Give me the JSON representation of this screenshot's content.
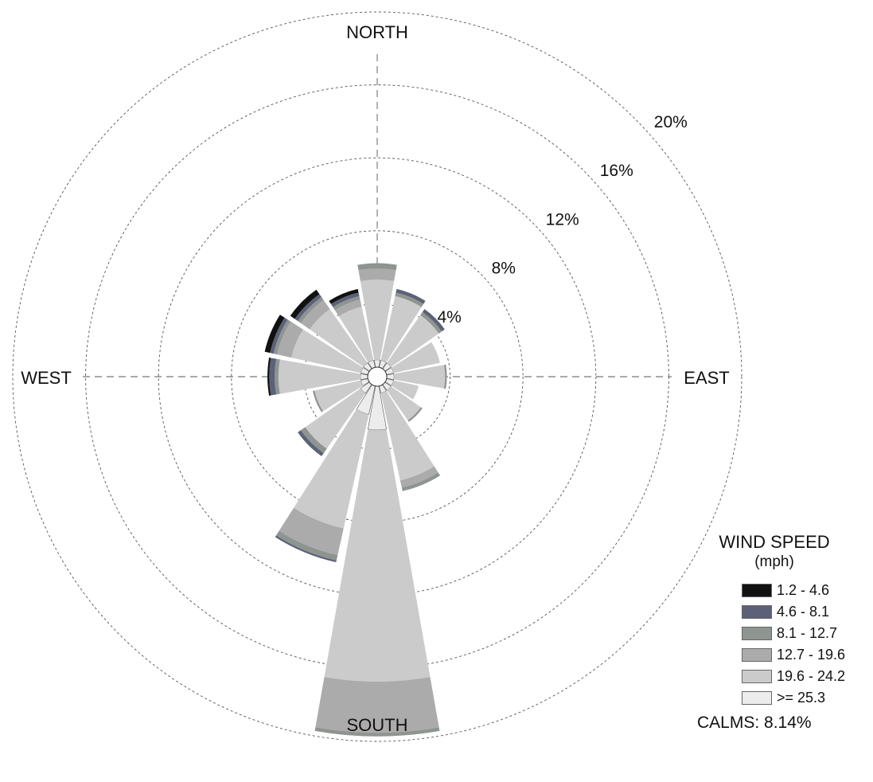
{
  "chart_data": {
    "type": "wind-rose",
    "legend_title": "WIND SPEED",
    "legend_unit": "(mph)",
    "calms_label": "CALMS: 8.14%",
    "direction_labels": {
      "north": "NORTH",
      "east": "EAST",
      "south": "SOUTH",
      "west": "WEST"
    },
    "ring_values": [
      4,
      8,
      12,
      16,
      20
    ],
    "ring_labels": [
      "4%",
      "8%",
      "12%",
      "16%",
      "20%"
    ],
    "value_unit": "%",
    "bins": [
      {
        "name": "1.2 - 4.6",
        "color": "#111111"
      },
      {
        "name": "4.6 - 8.1",
        "color": "#5c6178"
      },
      {
        "name": "8.1 - 12.7",
        "color": "#8e9590"
      },
      {
        "name": "12.7 - 19.6",
        "color": "#ababab"
      },
      {
        "name": "19.6 - 24.2",
        "color": "#cbcbcb"
      },
      {
        "name": ">= 25.3",
        "color": "#ececec"
      }
    ],
    "directions": [
      {
        "dir": "N",
        "angle": 0,
        "values": [
          0.0,
          0.0,
          0.3,
          0.6,
          4.4,
          0.4
        ]
      },
      {
        "dir": "NNE",
        "angle": 22.5,
        "values": [
          0.0,
          0.2,
          0.2,
          0.0,
          3.6,
          0.4
        ]
      },
      {
        "dir": "NE",
        "angle": 45,
        "values": [
          0.0,
          0.2,
          0.2,
          0.0,
          3.2,
          0.4
        ]
      },
      {
        "dir": "ENE",
        "angle": 67.5,
        "values": [
          0.0,
          0.0,
          0.0,
          0.0,
          2.6,
          0.4
        ]
      },
      {
        "dir": "E",
        "angle": 90,
        "values": [
          0.0,
          0.0,
          0.1,
          0.0,
          2.8,
          0.4
        ]
      },
      {
        "dir": "ESE",
        "angle": 112.5,
        "values": [
          0.0,
          0.0,
          0.0,
          0.0,
          1.4,
          0.4
        ]
      },
      {
        "dir": "SE",
        "angle": 135,
        "values": [
          0.0,
          0.0,
          0.1,
          0.0,
          2.0,
          0.4
        ]
      },
      {
        "dir": "SSE",
        "angle": 157.5,
        "values": [
          0.0,
          0.0,
          0.2,
          0.4,
          4.9,
          0.4
        ]
      },
      {
        "dir": "S",
        "angle": 180,
        "values": [
          0.0,
          0.0,
          0.2,
          2.8,
          13.8,
          2.4
        ]
      },
      {
        "dir": "SSW",
        "angle": 202.5,
        "values": [
          0.0,
          0.1,
          0.3,
          1.5,
          6.4,
          1.6
        ]
      },
      {
        "dir": "SW",
        "angle": 225,
        "values": [
          0.0,
          0.2,
          0.3,
          0.0,
          3.7,
          0.6
        ]
      },
      {
        "dir": "WSW",
        "angle": 247.5,
        "values": [
          0.0,
          0.0,
          0.1,
          0.0,
          2.6,
          0.4
        ]
      },
      {
        "dir": "W",
        "angle": 270,
        "values": [
          0.1,
          0.3,
          0.2,
          0.0,
          4.5,
          0.4
        ]
      },
      {
        "dir": "WNW",
        "angle": 292.5,
        "values": [
          0.3,
          0.2,
          0.2,
          0.8,
          3.9,
          0.4
        ]
      },
      {
        "dir": "NW",
        "angle": 315,
        "values": [
          0.3,
          0.2,
          0.2,
          0.6,
          3.6,
          0.4
        ]
      },
      {
        "dir": "NNW",
        "angle": 337.5,
        "values": [
          0.2,
          0.2,
          0.2,
          0.4,
          3.0,
          0.4
        ]
      }
    ]
  }
}
